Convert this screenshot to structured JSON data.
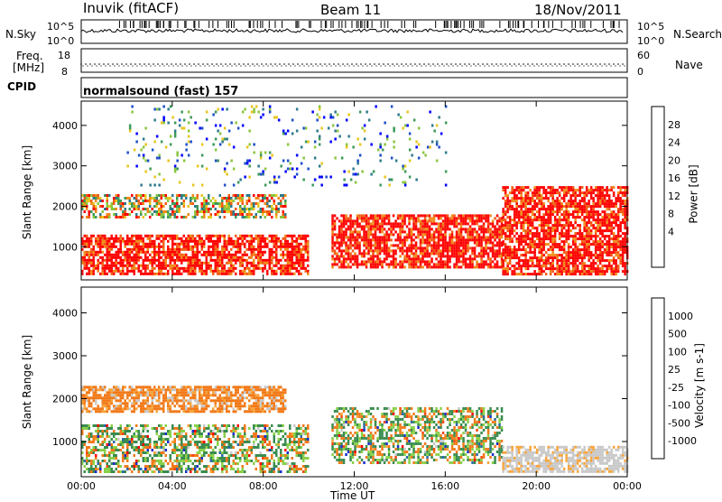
{
  "header": {
    "station": "Inuvik (fitACF)",
    "beam": "Beam 11",
    "date": "18/Nov/2011"
  },
  "param_panels": {
    "nsky_label": "N.Sky",
    "nsky_ticks": [
      "10^5",
      "10^0"
    ],
    "nsearch_label": "N.Search",
    "nsearch_ticks": [
      "10^5",
      "10^0"
    ],
    "freq_label": "Freq.",
    "freq_unit": "[MHz]",
    "freq_ticks": [
      "18",
      "8"
    ],
    "nave_label": "Nave",
    "nave_ticks": [
      "60",
      "0"
    ],
    "cpid_label": "CPID",
    "cpid_text": "normalsound (fast) 157"
  },
  "chart_data": [
    {
      "type": "heatmap",
      "name": "power-panel",
      "xlabel": "",
      "ylabel": "Slant Range [km]",
      "x_ticks": [
        "00:00",
        "04:00",
        "08:00",
        "12:00",
        "16:00",
        "20:00",
        "00:00"
      ],
      "y_ticks": [
        1000,
        2000,
        3000,
        4000
      ],
      "ylim": [
        180,
        4600
      ],
      "xlim_hours": [
        0,
        24
      ],
      "colorbar": {
        "label": "Power [dB]",
        "ticks": [
          "28",
          "24",
          "20",
          "16",
          "12",
          "8",
          "4"
        ],
        "colors": [
          "#0000ff",
          "#1d4fc8",
          "#2e7a8c",
          "#3d9a5a",
          "#8bc63f",
          "#e8c61e",
          "#f08a18",
          "#f25a14",
          "#ff0000"
        ]
      },
      "features": [
        {
          "desc": "strong near-range echoes",
          "t_start": 0.0,
          "t_end": 10.0,
          "range_km": [
            300,
            1300
          ],
          "level": "high"
        },
        {
          "desc": "band near 1900 km",
          "t_start": 0.0,
          "t_end": 9.0,
          "range_km": [
            1700,
            2300
          ],
          "level": "mixed"
        },
        {
          "desc": "main band afternoon",
          "t_start": 11.0,
          "t_end": 18.5,
          "range_km": [
            500,
            1800
          ],
          "level": "high"
        },
        {
          "desc": "evening echoes",
          "t_start": 18.5,
          "t_end": 24.0,
          "range_km": [
            300,
            2500
          ],
          "level": "high"
        },
        {
          "desc": "scattered far range",
          "t_start": 2.0,
          "t_end": 16.0,
          "range_km": [
            2500,
            4500
          ],
          "level": "low"
        }
      ]
    },
    {
      "type": "heatmap",
      "name": "velocity-panel",
      "xlabel": "Time UT",
      "ylabel": "Slant Range [km]",
      "x_ticks": [
        "00:00",
        "04:00",
        "08:00",
        "12:00",
        "16:00",
        "20:00",
        "00:00"
      ],
      "y_ticks": [
        1000,
        2000,
        3000,
        4000
      ],
      "ylim": [
        180,
        4600
      ],
      "xlim_hours": [
        0,
        24
      ],
      "colorbar": {
        "label": "Velocity [m s-1]",
        "ticks": [
          "1000",
          "500",
          "100",
          "25",
          "-25",
          "-100",
          "-500",
          "-1000"
        ],
        "colors": [
          "#1a2fc9",
          "#2b6aa8",
          "#3a8c50",
          "#8ad14a",
          "#c8c8c8",
          "#f7a43a",
          "#f27a1a",
          "#f24a10",
          "#ff0000"
        ]
      },
      "features": [
        {
          "desc": "near range mixed green/orange",
          "t_start": 0.0,
          "t_end": 10.0,
          "range_km": [
            300,
            1400
          ],
          "level": "mixed"
        },
        {
          "desc": "orange band ~1900 km",
          "t_start": 0.0,
          "t_end": 9.0,
          "range_km": [
            1700,
            2300
          ],
          "level": "orange"
        },
        {
          "desc": "afternoon mixed",
          "t_start": 11.0,
          "t_end": 18.5,
          "range_km": [
            500,
            1800
          ],
          "level": "mixed"
        },
        {
          "desc": "evening grey ground scatter",
          "t_start": 18.5,
          "t_end": 24.0,
          "range_km": [
            300,
            900
          ],
          "level": "grey"
        }
      ]
    }
  ]
}
